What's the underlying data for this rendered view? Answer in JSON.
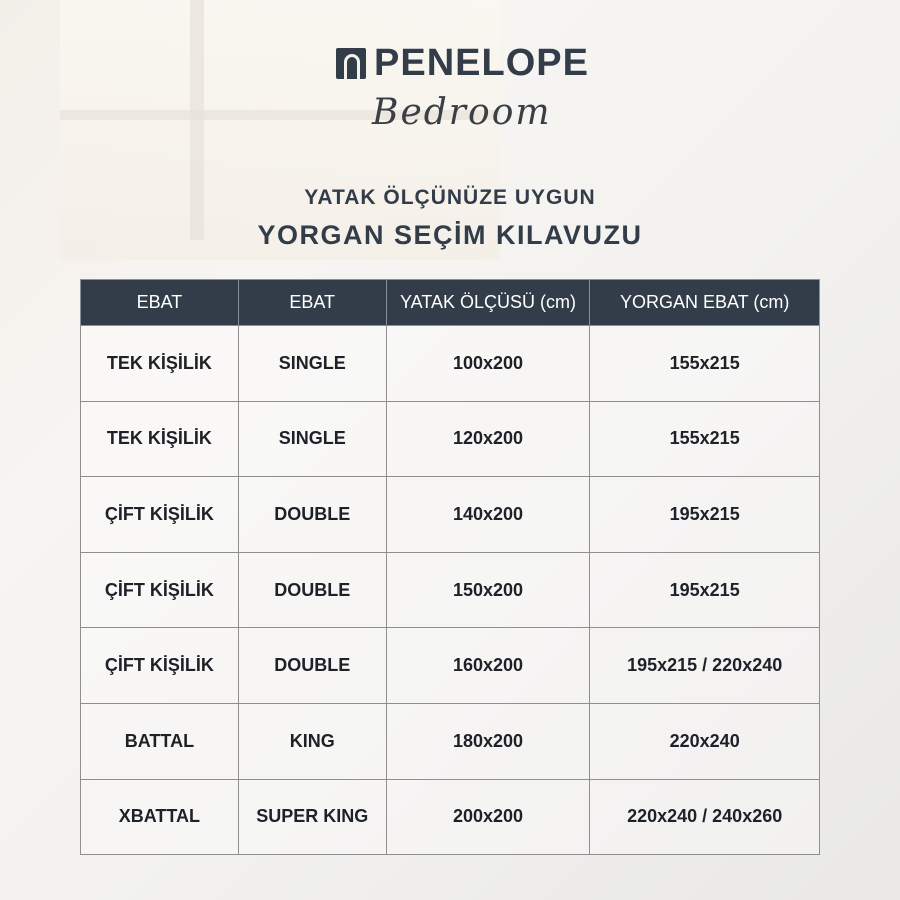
{
  "brand": {
    "name": "PENELOPE",
    "sub": "Bedroom"
  },
  "title": {
    "line1": "YATAK ÖLÇÜNÜZE UYGUN",
    "line2": "YORGAN SEÇİM KILAVUZU"
  },
  "table": {
    "headers": [
      "EBAT",
      "EBAT",
      "YATAK ÖLÇÜSÜ (cm)",
      "YORGAN EBAT (cm)"
    ],
    "rows": [
      [
        "TEK KİŞİLİK",
        "SINGLE",
        "100x200",
        "155x215"
      ],
      [
        "TEK KİŞİLİK",
        "SINGLE",
        "120x200",
        "155x215"
      ],
      [
        "ÇİFT KİŞİLİK",
        "DOUBLE",
        "140x200",
        "195x215"
      ],
      [
        "ÇİFT KİŞİLİK",
        "DOUBLE",
        "150x200",
        "195x215"
      ],
      [
        "ÇİFT KİŞİLİK",
        "DOUBLE",
        "160x200",
        "195x215 / 220x240"
      ],
      [
        "BATTAL",
        "KING",
        "180x200",
        "220x240"
      ],
      [
        "XBATTAL",
        "SUPER KING",
        "200x200",
        "220x240 / 240x260"
      ]
    ]
  },
  "colors": {
    "primary": "#323d49"
  }
}
